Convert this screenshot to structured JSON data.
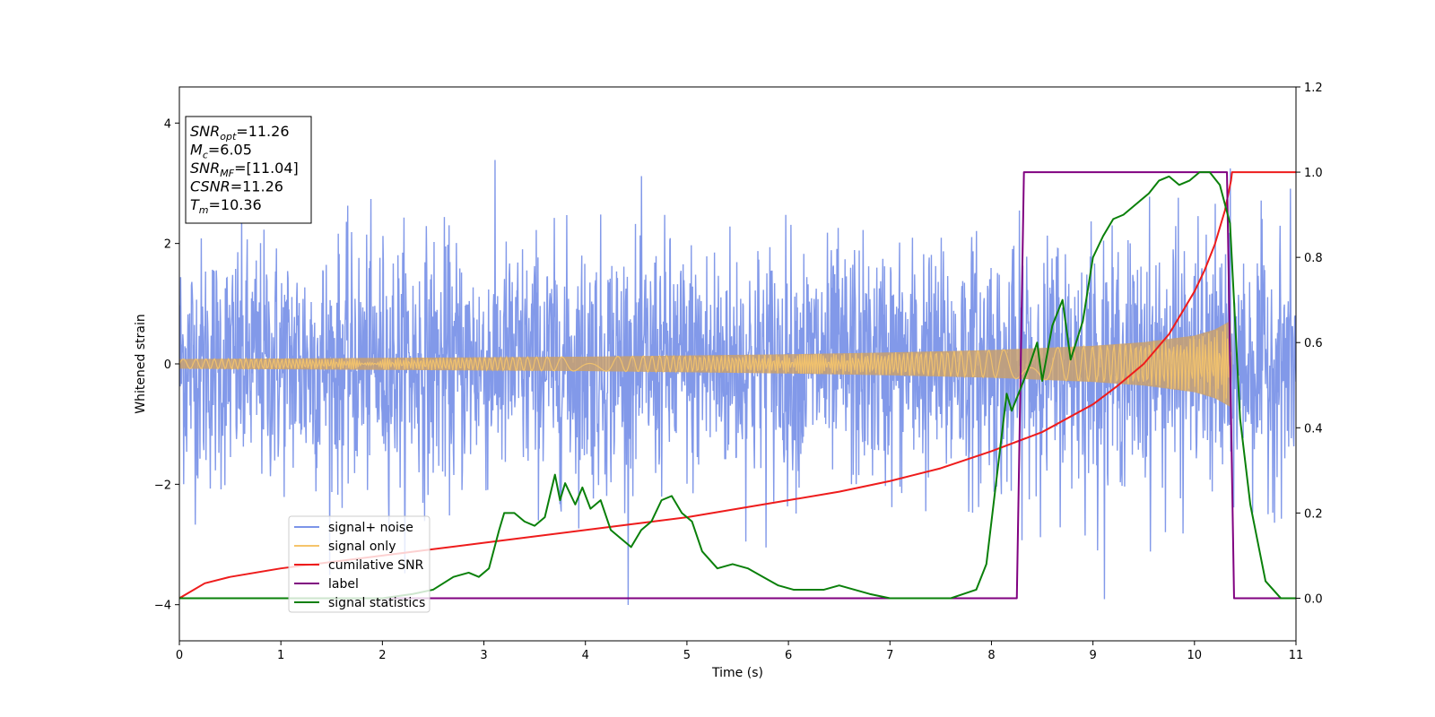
{
  "chart_data": {
    "type": "line",
    "title": "",
    "xlabel": "Time (s)",
    "ylabel": "Whitened strain",
    "xlim": [
      0,
      11
    ],
    "ylim": [
      -4.6,
      4.6
    ],
    "y2lim": [
      -0.1,
      1.2
    ],
    "x_ticks": [
      0,
      1,
      2,
      3,
      4,
      5,
      6,
      7,
      8,
      9,
      10,
      11
    ],
    "y_ticks": [
      -4,
      -2,
      0,
      2,
      4
    ],
    "y2_ticks": [
      "0.0",
      "0.2",
      "0.4",
      "0.6",
      "0.8",
      "1.0",
      "1.2"
    ],
    "grid": false,
    "legend_position": "lower-left",
    "annotation": {
      "lines": [
        {
          "main": "SNR",
          "sub": "opt",
          "rest": "=11.26"
        },
        {
          "main": "M",
          "sub": "c",
          "rest": "=6.05"
        },
        {
          "main": "SNR",
          "sub": "MF",
          "rest": "=[11.04]"
        },
        {
          "main": "CSNR",
          "sub": "",
          "rest": "=11.26"
        },
        {
          "main": "T",
          "sub": "m",
          "rest": "=10.36"
        }
      ]
    },
    "series": [
      {
        "name": "signal+ noise",
        "color": "#7b94e8",
        "axis": "left",
        "noise_std": 1.0,
        "signal_added": true
      },
      {
        "name": "signal only",
        "color": "#f5c46a",
        "axis": "left",
        "envelope_x": [
          0,
          1,
          2,
          3,
          4,
          5,
          6,
          7,
          8,
          9,
          9.5,
          10,
          10.2,
          10.36,
          10.37,
          11
        ],
        "envelope_y": [
          0.08,
          0.09,
          0.1,
          0.11,
          0.12,
          0.14,
          0.16,
          0.19,
          0.23,
          0.3,
          0.36,
          0.47,
          0.57,
          0.72,
          0.0,
          0.0
        ]
      },
      {
        "name": "cumilative SNR",
        "color": "#ee1c1c",
        "axis": "right",
        "x": [
          0,
          0.25,
          0.5,
          1,
          1.5,
          2,
          2.5,
          3,
          3.5,
          4,
          4.5,
          5,
          5.5,
          6,
          6.5,
          7,
          7.5,
          8,
          8.5,
          9,
          9.25,
          9.5,
          9.75,
          10,
          10.1,
          10.2,
          10.3,
          10.36,
          10.37,
          11
        ],
        "y": [
          0.0,
          0.035,
          0.05,
          0.07,
          0.085,
          0.1,
          0.115,
          0.13,
          0.145,
          0.16,
          0.175,
          0.19,
          0.21,
          0.23,
          0.25,
          0.275,
          0.305,
          0.345,
          0.39,
          0.455,
          0.5,
          0.55,
          0.62,
          0.72,
          0.77,
          0.83,
          0.91,
          0.98,
          1.0,
          1.0
        ]
      },
      {
        "name": "label",
        "color": "#800080",
        "axis": "right",
        "x": [
          0,
          8.25,
          8.32,
          10.32,
          10.39,
          11
        ],
        "y": [
          0,
          0,
          1,
          1,
          0,
          0
        ]
      },
      {
        "name": "signal statistics",
        "color": "#0a800a",
        "axis": "right",
        "x": [
          0,
          1,
          2,
          2.3,
          2.5,
          2.7,
          2.85,
          2.95,
          3.05,
          3.15,
          3.2,
          3.3,
          3.4,
          3.5,
          3.6,
          3.7,
          3.75,
          3.8,
          3.9,
          3.97,
          4.05,
          4.15,
          4.25,
          4.35,
          4.45,
          4.55,
          4.65,
          4.75,
          4.85,
          4.95,
          5.05,
          5.15,
          5.3,
          5.45,
          5.6,
          5.75,
          5.9,
          6.05,
          6.2,
          6.35,
          6.5,
          6.65,
          6.8,
          7.0,
          7.3,
          7.6,
          7.85,
          7.95,
          8.05,
          8.15,
          8.2,
          8.3,
          8.38,
          8.45,
          8.5,
          8.6,
          8.7,
          8.78,
          8.9,
          9.0,
          9.1,
          9.2,
          9.3,
          9.45,
          9.55,
          9.65,
          9.75,
          9.85,
          9.95,
          10.05,
          10.15,
          10.25,
          10.35,
          10.45,
          10.55,
          10.7,
          10.85,
          11
        ],
        "y": [
          0.0,
          0.0,
          0.0,
          0.01,
          0.02,
          0.05,
          0.06,
          0.05,
          0.07,
          0.16,
          0.2,
          0.2,
          0.18,
          0.17,
          0.19,
          0.29,
          0.23,
          0.27,
          0.22,
          0.26,
          0.21,
          0.23,
          0.16,
          0.14,
          0.12,
          0.16,
          0.18,
          0.23,
          0.24,
          0.2,
          0.18,
          0.11,
          0.07,
          0.08,
          0.07,
          0.05,
          0.03,
          0.02,
          0.02,
          0.02,
          0.03,
          0.02,
          0.01,
          0.0,
          0.0,
          0.0,
          0.02,
          0.08,
          0.28,
          0.48,
          0.44,
          0.5,
          0.55,
          0.6,
          0.51,
          0.64,
          0.7,
          0.56,
          0.65,
          0.8,
          0.85,
          0.89,
          0.9,
          0.93,
          0.95,
          0.98,
          0.99,
          0.97,
          0.98,
          1.0,
          1.0,
          0.97,
          0.88,
          0.42,
          0.22,
          0.04,
          0.0,
          0.0
        ]
      }
    ]
  }
}
